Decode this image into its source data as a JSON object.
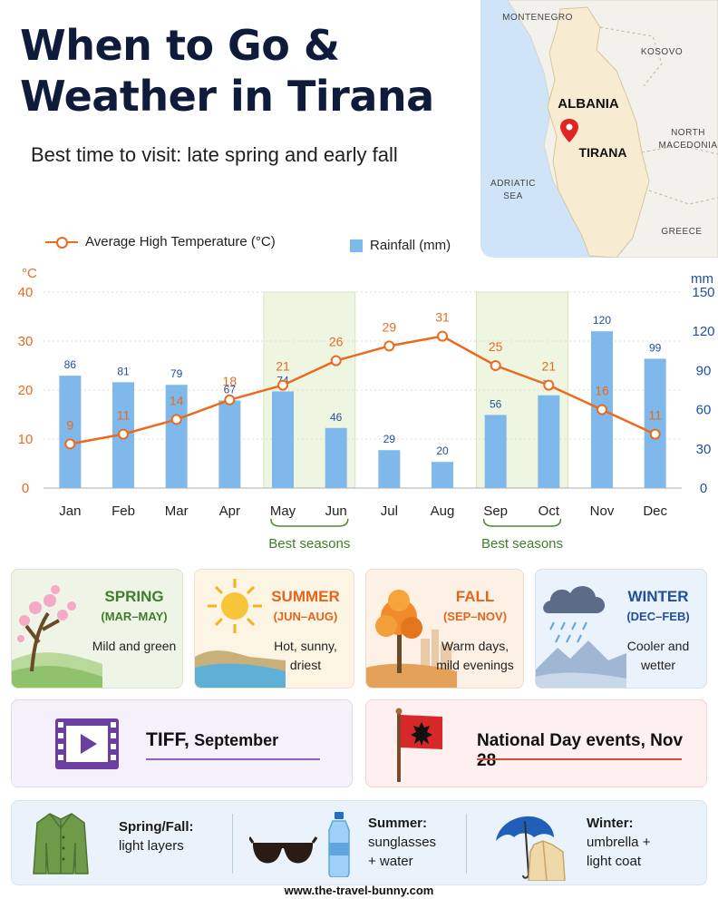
{
  "header": {
    "title_line1": "When to Go &",
    "title_line2": "Weather in Tirana",
    "subtitle": "Best time to visit: late spring and early fall"
  },
  "map": {
    "labels": {
      "montenegro": "MONTENEGRO",
      "kosovo": "KOSOVO",
      "albania": "ALBANIA",
      "tirana": "TIRANA",
      "north_macedonia_1": "NORTH",
      "north_macedonia_2": "MACEDONIA",
      "adriatic_1": "ADRIATIC",
      "adriatic_2": "SEA",
      "greece": "GREECE"
    },
    "colors": {
      "sea": "#cfe5f7",
      "land": "#f7ecd2",
      "neighbors": "#f3f1ec",
      "pin": "#e02424"
    }
  },
  "legend": {
    "line": "Average High Temperature (°C)",
    "bar": "Rainfall (mm)"
  },
  "chart_data": {
    "type": "bar+line",
    "categories": [
      "Jan",
      "Feb",
      "Mar",
      "Apr",
      "May",
      "Jun",
      "Jul",
      "Aug",
      "Sep",
      "Oct",
      "Nov",
      "Dec"
    ],
    "series": [
      {
        "name": "Average High Temperature (°C)",
        "type": "line",
        "axis": "left",
        "values": [
          9,
          11,
          14,
          18,
          21,
          26,
          29,
          31,
          25,
          21,
          16,
          11
        ],
        "color": "#ea6a1f"
      },
      {
        "name": "Rainfall (mm)",
        "type": "bar",
        "axis": "right",
        "values": [
          86,
          81,
          79,
          67,
          74,
          46,
          29,
          20,
          56,
          71,
          120,
          99
        ],
        "color": "#7fb8ea"
      }
    ],
    "y_left": {
      "unit": "°C",
      "ticks": [
        0,
        10,
        20,
        30,
        40
      ],
      "range": [
        0,
        40
      ],
      "color": "#ea6a1f"
    },
    "y_right": {
      "unit": "mm",
      "ticks": [
        0,
        30,
        60,
        90,
        120,
        150
      ],
      "range": [
        0,
        150
      ],
      "color": "#1f4f9e"
    },
    "highlight_bands": [
      {
        "from": "May",
        "to": "Jun",
        "label": "Best seasons"
      },
      {
        "from": "Sep",
        "to": "Oct",
        "label": "Best seasons"
      }
    ],
    "grid": true,
    "legend_placement": "top-left"
  },
  "seasons": [
    {
      "name": "SPRING",
      "range": "(MAR–MAY)",
      "desc1": "Mild and green",
      "desc2": "",
      "color": "#3f7d2c",
      "bg": "#eef5e6"
    },
    {
      "name": "SUMMER",
      "range": "(JUN–AUG)",
      "desc1": "Hot, sunny,",
      "desc2": "driest",
      "color": "#e2651c",
      "bg": "#fdf5e4"
    },
    {
      "name": "FALL",
      "range": "(SEP–NOV)",
      "desc1": "Warm days,",
      "desc2": "mild evenings",
      "color": "#e2651c",
      "bg": "#fdf0e4"
    },
    {
      "name": "WINTER",
      "range": "(DEC–FEB)",
      "desc1": "Cooler and",
      "desc2": "wetter",
      "color": "#1f4f9e",
      "bg": "#eaf2fb"
    }
  ],
  "events": [
    {
      "title": "TIFF,",
      "detail": "September",
      "icon": "film-play-icon",
      "bg": "#f4f1fa",
      "accent": "#6b3fa0"
    },
    {
      "title": "National Day events, Nov 28",
      "icon": "albania-flag-icon",
      "bg": "#fdf0ee",
      "accent": "#c0392b"
    }
  ],
  "packing": [
    {
      "label": "Spring/Fall:",
      "line1": "light layers",
      "line2": "",
      "icon": "jacket-icon"
    },
    {
      "label": "Summer:",
      "line1": "sunglasses",
      "line2": "+ water",
      "icon": "sunglasses-water-icon"
    },
    {
      "label": "Winter:",
      "line1": "umbrella +",
      "line2": "light coat",
      "icon": "umbrella-coat-icon"
    }
  ],
  "footer": {
    "url": "www.the-travel-bunny.com"
  }
}
